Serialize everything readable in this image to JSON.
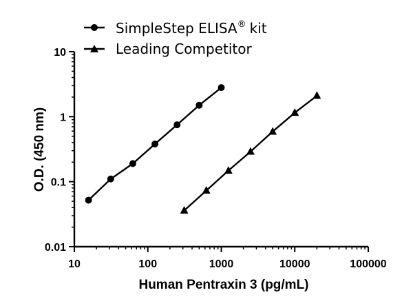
{
  "chart_data": {
    "type": "line",
    "xlabel": "Human Pentraxin 3 (pg/mL)",
    "ylabel": "O.D. (450 nm)",
    "x_scale": "log",
    "y_scale": "log",
    "xlim": [
      10,
      100000
    ],
    "ylim": [
      0.01,
      10
    ],
    "x_ticks": [
      "10",
      "100",
      "1000",
      "10000",
      "100000"
    ],
    "y_ticks": [
      "0.01",
      "0.1",
      "1",
      "10"
    ],
    "grid": false,
    "legend_position": "top",
    "series": [
      {
        "name": "SimpleStep ELISA",
        "name_superscript": "®",
        "name_suffix": "kit",
        "marker": "circle",
        "color": "#000000",
        "x": [
          15.6,
          31.25,
          62.5,
          125,
          250,
          500,
          1000
        ],
        "y": [
          0.052,
          0.11,
          0.19,
          0.38,
          0.75,
          1.5,
          2.8
        ]
      },
      {
        "name": "Leading Competitor",
        "marker": "triangle",
        "color": "#000000",
        "x": [
          312.5,
          625,
          1250,
          2500,
          5000,
          10000,
          20000
        ],
        "y": [
          0.036,
          0.073,
          0.148,
          0.29,
          0.59,
          1.15,
          2.1
        ]
      }
    ]
  }
}
